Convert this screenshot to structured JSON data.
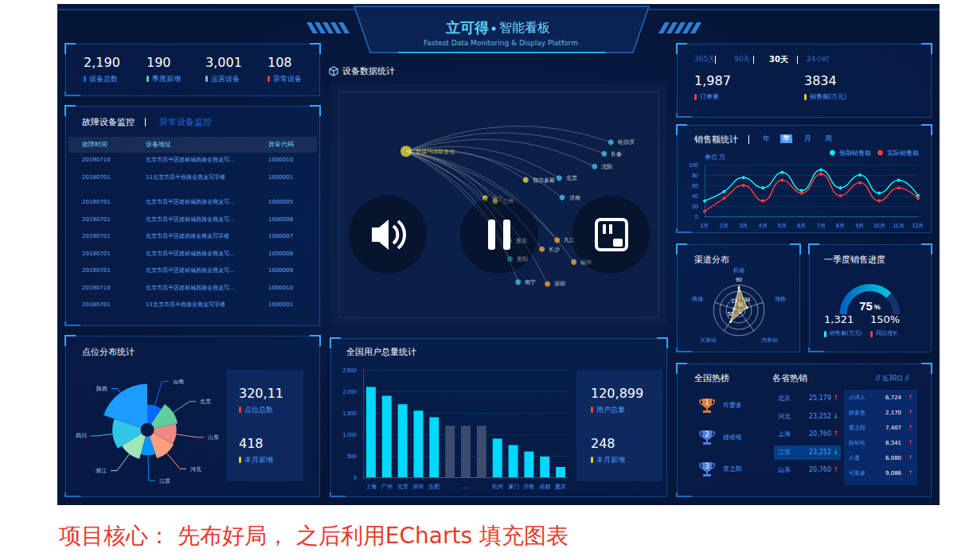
{
  "header": {
    "logo": "立可得",
    "title": "智能看板",
    "subtitle": "Fastest Data Monitoring & Display Platform"
  },
  "overview": [
    {
      "value": "2,190",
      "label": "设备总数",
      "color": "#006cff"
    },
    {
      "value": "190",
      "label": "季度新增",
      "color": "#6acca3"
    },
    {
      "value": "3,001",
      "label": "运营设备",
      "color": "#6acca3"
    },
    {
      "value": "108",
      "label": "异常设备",
      "color": "#ed3f35"
    }
  ],
  "monitor": {
    "tabs": [
      "故障设备监控",
      "异常设备监控"
    ],
    "columns": [
      "故障时间",
      "设备地址",
      "异常代码"
    ],
    "rows": [
      [
        "20190710",
        "北京市昌平区建材城西路金燕龙写...",
        "1000010"
      ],
      [
        "20180701",
        "11北京市昌平西路金燕龙写字楼",
        "1000001"
      ],
      [
        "20190701",
        "北京市昌平区建材城西路金燕龙写...",
        "1000005"
      ],
      [
        "20190701",
        "北京市昌平区建材城西路金燕龙写...",
        "1000006"
      ],
      [
        "20190701",
        "北京市昌平区建西路金燕龙写字楼",
        "1000007"
      ],
      [
        "20190701",
        "北京市昌平区建材城西路金燕龙写...",
        "1000008"
      ],
      [
        "20190701",
        "北京市昌平区建材城西路金燕龙写...",
        "1000009"
      ],
      [
        "20190710",
        "北京市昌平区建材城西路金燕龙写...",
        "1000010"
      ],
      [
        "20180701",
        "11北京市昌平西路金燕龙写字楼",
        "1000001"
      ]
    ]
  },
  "point_stats": [
    {
      "value": "320,11",
      "label": "点位总数",
      "color": "#ed3f35"
    },
    {
      "value": "418",
      "label": "本月新增",
      "color": "#eacf19"
    }
  ],
  "user_stats": [
    {
      "value": "120,899",
      "label": "用户总量",
      "color": "#ed3f35"
    },
    {
      "value": "248",
      "label": "本月新增",
      "color": "#eacf19"
    }
  ],
  "order": {
    "tabs": [
      "365天",
      "90天",
      "30天",
      "24小时"
    ],
    "active": "30天",
    "stats": [
      {
        "value": "1,987",
        "label": "订单量",
        "color": "#ed3f35"
      },
      {
        "value": "3834",
        "label": "销售额(万元)",
        "color": "#eacf19"
      }
    ]
  },
  "sales_tabs": {
    "tabs": [
      "年",
      "季",
      "月",
      "周"
    ],
    "active": "季"
  },
  "quarter_stats": [
    {
      "value": "1,321",
      "label": "销售额(万元)",
      "color": "#12f7f7"
    },
    {
      "value": "150%",
      "label": "同比增长",
      "color": "#ed3f35"
    }
  ],
  "hot": {
    "title": "全国热榜",
    "ranking": [
      {
        "rank": "1",
        "name": "可爱多"
      },
      {
        "rank": "2",
        "name": "娃哈哈"
      },
      {
        "rank": "3",
        "name": "喜之郎"
      }
    ],
    "province_title": "各省热销",
    "period": "// 近30日 //",
    "provinces": [
      {
        "name": "北京",
        "value": "25,179",
        "trend": "↑"
      },
      {
        "name": "河北",
        "value": "23,252",
        "trend": "↓"
      },
      {
        "name": "上海",
        "value": "20,760",
        "trend": "↑"
      },
      {
        "name": "江苏",
        "value": "23,252",
        "trend": "↓"
      },
      {
        "name": "山东",
        "value": "20,760",
        "trend": "↑"
      }
    ],
    "highlight": "江苏",
    "brands": [
      {
        "name": "小洋人",
        "value": "6,724",
        "trend": "↑"
      },
      {
        "name": "好多鱼",
        "value": "2,170",
        "trend": "↑"
      },
      {
        "name": "喜之郎",
        "value": "7,407",
        "trend": "↑"
      },
      {
        "name": "娃哈哈",
        "value": "8,341",
        "trend": "↑"
      },
      {
        "name": "八喜",
        "value": "6,080",
        "trend": "↑"
      },
      {
        "name": "可爱多",
        "value": "9,086",
        "trend": "↑"
      }
    ]
  },
  "caption": "项目核心： 先布好局， 之后利用ECharts 填充图表",
  "chart_data": [
    {
      "type": "pie",
      "title": "点位分布统计",
      "categories": [
        "云南",
        "北京",
        "山东",
        "河北",
        "江苏",
        "浙江",
        "四川",
        "陕西"
      ],
      "values": [
        20,
        26,
        24,
        25,
        20,
        25,
        30,
        42
      ],
      "colors": [
        "#006cff",
        "#60cda0",
        "#ed8884",
        "#ff9f7f",
        "#0096ff",
        "#9fe6b8",
        "#32c5e9",
        "#1d9dff"
      ]
    },
    {
      "type": "map",
      "title": "设备数据统计",
      "xlim": [
        73,
        136
      ],
      "ylim": [
        17,
        54
      ],
      "tick_labels": false,
      "points": [
        {
          "name": "新疆玛纳斯基地",
          "x": 86.2,
          "y": 44.3,
          "color": "#e6d83a"
        },
        {
          "name": "哈尔滨",
          "x": 126.6,
          "y": 45.8,
          "color": "#46bee9"
        },
        {
          "name": "长春",
          "x": 125.3,
          "y": 43.9,
          "color": "#46bee9"
        },
        {
          "name": "沈阳",
          "x": 123.4,
          "y": 41.8,
          "color": "#46bee9"
        },
        {
          "name": "鄂尔多斯",
          "x": 109.8,
          "y": 39.6,
          "color": "#e6d83a"
        },
        {
          "name": "北京",
          "x": 116.4,
          "y": 39.9,
          "color": "#46bee9"
        },
        {
          "name": "济南",
          "x": 117.0,
          "y": 36.7,
          "color": "#46bee9"
        },
        {
          "name": "兰州",
          "x": 103.8,
          "y": 36.1,
          "color": "#e6d83a"
        },
        {
          "name": "西宁",
          "x": 101.8,
          "y": 36.6,
          "color": "#e6d83a"
        },
        {
          "name": "重庆",
          "x": 106.5,
          "y": 29.6,
          "color": "#46bee9"
        },
        {
          "name": "贵阳",
          "x": 106.7,
          "y": 26.6,
          "color": "#46bee9"
        },
        {
          "name": "南宁",
          "x": 108.3,
          "y": 22.8,
          "color": "#46bee9"
        },
        {
          "name": "深圳",
          "x": 114.1,
          "y": 22.5,
          "color": "#f7a13a"
        },
        {
          "name": "福州",
          "x": 119.3,
          "y": 26.1,
          "color": "#f7a13a"
        },
        {
          "name": "九江",
          "x": 116.0,
          "y": 29.7,
          "color": "#f7a13a"
        },
        {
          "name": "长沙",
          "x": 113.0,
          "y": 28.2,
          "color": "#f7a13a"
        }
      ],
      "routes": [
        [
          "新疆玛纳斯基地",
          "哈尔滨"
        ],
        [
          "新疆玛纳斯基地",
          "长春"
        ],
        [
          "新疆玛纳斯基地",
          "沈阳"
        ],
        [
          "新疆玛纳斯基地",
          "鄂尔多斯"
        ],
        [
          "新疆玛纳斯基地",
          "北京"
        ],
        [
          "新疆玛纳斯基地",
          "济南"
        ],
        [
          "新疆玛纳斯基地",
          "兰州"
        ],
        [
          "新疆玛纳斯基地",
          "西宁"
        ],
        [
          "新疆玛纳斯基地",
          "重庆"
        ],
        [
          "新疆玛纳斯基地",
          "贵阳"
        ],
        [
          "新疆玛纳斯基地",
          "南宁"
        ],
        [
          "新疆玛纳斯基地",
          "深圳"
        ],
        [
          "新疆玛纳斯基地",
          "福州"
        ],
        [
          "新疆玛纳斯基地",
          "九江"
        ],
        [
          "新疆玛纳斯基地",
          "长沙"
        ]
      ]
    },
    {
      "type": "bar",
      "title": "全国用户总量统计",
      "categories": [
        "上海",
        "广州",
        "北京",
        "深圳",
        "合肥",
        null,
        "......",
        null,
        "杭州",
        "厦门",
        "济南",
        "成都",
        "重庆"
      ],
      "values": [
        2100,
        1900,
        1700,
        1550,
        1400,
        1200,
        1200,
        1200,
        900,
        750,
        600,
        480,
        240
      ],
      "colors": [
        "#00d8ff",
        "#00d8ff",
        "#00d8ff",
        "#00d8ff",
        "#00d8ff",
        "#3c4b6e",
        "#3c4b6e",
        "#3c4b6e",
        "#00d8ff",
        "#00d8ff",
        "#00d8ff",
        "#00d8ff",
        "#00d8ff"
      ],
      "ylim": [
        0,
        2500
      ],
      "yticks": [
        0,
        500,
        {
          "value": 1000,
          "label": "1,000"
        },
        {
          "value": 1500,
          "label": "1,500"
        },
        {
          "value": 2000,
          "label": "2,000"
        },
        {
          "value": 2500,
          "label": "2,500"
        }
      ],
      "grid": true
    },
    {
      "type": "line",
      "title": "销售额统计",
      "ylabel": "单位 万",
      "categories": [
        "1月",
        "2月",
        "3月",
        "4月",
        "5月",
        "6月",
        "7月",
        "8月",
        "9月",
        "10月",
        "11月",
        "12月"
      ],
      "series": [
        {
          "name": "预期销售额",
          "color": "#00f2f1",
          "values": [
            30,
            48,
            75,
            55,
            85,
            50,
            90,
            55,
            80,
            45,
            70,
            40
          ]
        },
        {
          "name": "实际销售额",
          "color": "#ed3f35",
          "values": [
            10,
            35,
            60,
            30,
            70,
            45,
            82,
            40,
            65,
            30,
            55,
            35
          ]
        }
      ],
      "ylim": [
        0,
        100
      ],
      "yticks": [
        0,
        20,
        40,
        60,
        80,
        100
      ],
      "legend": "top-right",
      "grid": true
    },
    {
      "type": "radar",
      "title": "渠道分布",
      "categories": [
        "机场",
        "商场",
        "火车站",
        "汽车站",
        "地铁"
      ],
      "values": [
        90,
        19,
        56,
        11,
        34
      ],
      "ylim": [
        0,
        100
      ],
      "data_labels": true,
      "color": "#eec566"
    },
    {
      "type": "gauge",
      "title": "一季度销售进度",
      "values": [
        75
      ],
      "unit": "%",
      "ylim": [
        0,
        100
      ],
      "color": "#00c9e0"
    }
  ]
}
